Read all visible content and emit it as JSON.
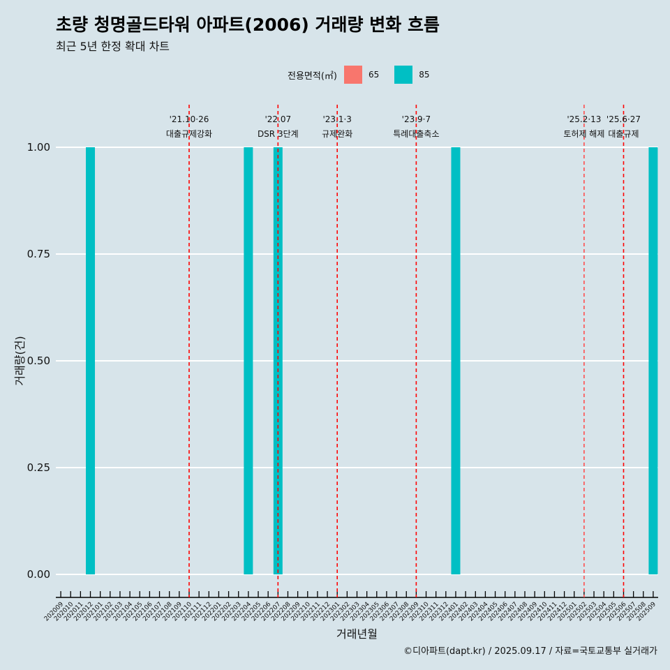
{
  "header": {
    "title": "초량 청명골드타워 아파트(2006) 거래량 변화 흐름",
    "subtitle": "최근 5년 한정 확대 차트"
  },
  "legend": {
    "title": "전용면적(㎡)",
    "items": [
      {
        "label": "65",
        "color": "#F8766D"
      },
      {
        "label": "85",
        "color": "#00BFC4"
      }
    ]
  },
  "caption": "©디아파트(dapt.kr) / 2025.09.17 / 자료=국토교통부 실거래가",
  "chart_data": {
    "type": "bar",
    "title": "초량 청명골드타워 아파트(2006) 거래량 변화 흐름",
    "xlabel": "거래년월",
    "ylabel": "거래량(건)",
    "ylim": [
      0,
      1
    ],
    "yticks": [
      "0.00",
      "0.25",
      "0.50",
      "0.75",
      "1.00"
    ],
    "categories": [
      "202009",
      "202010",
      "202011",
      "202012",
      "202101",
      "202102",
      "202103",
      "202104",
      "202105",
      "202106",
      "202107",
      "202108",
      "202109",
      "202110",
      "202111",
      "202112",
      "202201",
      "202202",
      "202203",
      "202204",
      "202205",
      "202206",
      "202207",
      "202208",
      "202209",
      "202210",
      "202211",
      "202212",
      "202301",
      "202302",
      "202303",
      "202304",
      "202305",
      "202306",
      "202307",
      "202308",
      "202309",
      "202310",
      "202311",
      "202312",
      "202401",
      "202402",
      "202403",
      "202404",
      "202405",
      "202406",
      "202407",
      "202408",
      "202409",
      "202410",
      "202411",
      "202412",
      "202501",
      "202502",
      "202503",
      "202504",
      "202505",
      "202506",
      "202507",
      "202508",
      "202509"
    ],
    "series": [
      {
        "name": "65",
        "color": "#F8766D",
        "values": [
          0,
          0,
          0,
          0,
          0,
          0,
          0,
          0,
          0,
          0,
          0,
          0,
          0,
          0,
          0,
          0,
          0,
          0,
          0,
          0,
          0,
          0,
          0,
          0,
          0,
          0,
          0,
          0,
          0,
          0,
          0,
          0,
          0,
          0,
          0,
          0,
          0,
          0,
          0,
          0,
          0,
          0,
          0,
          0,
          0,
          0,
          0,
          0,
          0,
          0,
          0,
          0,
          0,
          0,
          0,
          0,
          0,
          0,
          0,
          0,
          0
        ]
      },
      {
        "name": "85",
        "color": "#00BFC4",
        "values": [
          0,
          0,
          0,
          1,
          0,
          0,
          0,
          0,
          0,
          0,
          0,
          0,
          0,
          0,
          0,
          0,
          0,
          0,
          0,
          1,
          0,
          0,
          1,
          0,
          0,
          0,
          0,
          0,
          0,
          0,
          0,
          0,
          0,
          0,
          0,
          0,
          0,
          0,
          0,
          0,
          1,
          0,
          0,
          0,
          0,
          0,
          0,
          0,
          0,
          0,
          0,
          0,
          0,
          0,
          0,
          0,
          0,
          0,
          0,
          0,
          1
        ]
      }
    ],
    "annotations": [
      {
        "month": "202110",
        "date": "'21.10·26",
        "label": "대출규제강화",
        "color": "#ff0000"
      },
      {
        "month": "202207",
        "date": "'22.07",
        "label": "DSR 3단계",
        "color": "#ff0000"
      },
      {
        "month": "202301",
        "date": "'23.1·3",
        "label": "규제완화",
        "color": "#ff0000"
      },
      {
        "month": "202309",
        "date": "'23.9·7",
        "label": "특례대출축소",
        "color": "#ff0000"
      },
      {
        "month": "202502",
        "date": "'25.2·13",
        "label": "토허제 해제",
        "color": "#ff4d4d"
      },
      {
        "month": "202506",
        "date": "'25.6·27",
        "label": "대출규제",
        "color": "#ff0000"
      }
    ]
  }
}
